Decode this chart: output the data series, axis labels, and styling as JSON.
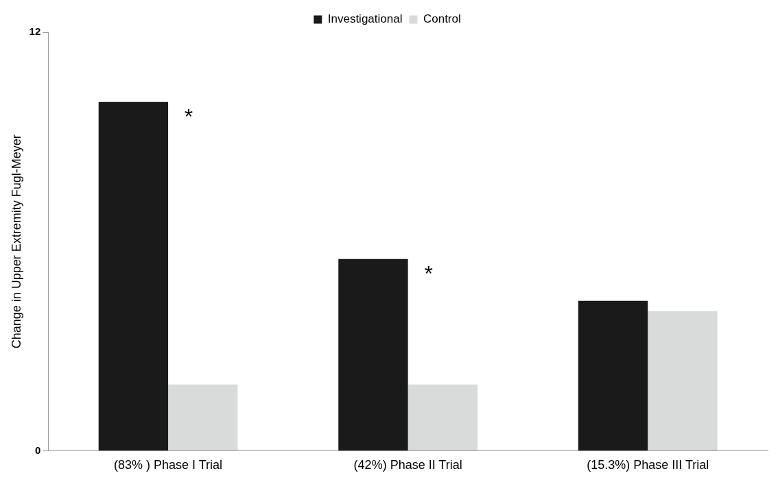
{
  "chart_data": {
    "type": "bar",
    "ylabel": "Change in Upper Extremity Fugl-Meyer",
    "categories": [
      "(83% ) Phase I Trial",
      "(42%) Phase II Trial",
      "(15.3%) Phase III Trial"
    ],
    "series": [
      {
        "name": "Investigational",
        "color": "#1a1a1a",
        "values": [
          10,
          5.5,
          4.3
        ]
      },
      {
        "name": "Control",
        "color": "#d9dbda",
        "values": [
          1.9,
          1.9,
          4.0
        ]
      }
    ],
    "ylim": [
      0,
      12
    ],
    "yticks": [
      0,
      12
    ],
    "grid": false,
    "legend": "top",
    "annotations": [
      {
        "text": "*",
        "x": "(83% ) Phase I Trial",
        "y": 10
      },
      {
        "text": "*",
        "x": "(42%) Phase II Trial",
        "y": 5.5
      }
    ]
  }
}
